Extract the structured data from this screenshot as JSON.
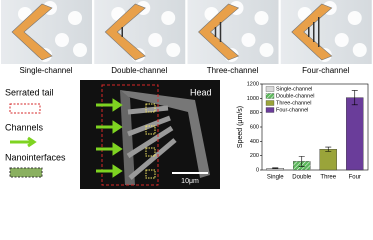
{
  "panels": [
    "Single-channel",
    "Double-channel",
    "Three-channel",
    "Four-channel"
  ],
  "legend": [
    "Serrated tail",
    "Channels",
    "Nanointerfaces"
  ],
  "micrograph": {
    "head": "Head",
    "scale": "10μm"
  },
  "chart_data": {
    "type": "bar",
    "ylabel": "Speed (μm/s)",
    "categories": [
      "Single",
      "Double",
      "Three",
      "Four"
    ],
    "values": [
      25,
      120,
      290,
      1010
    ],
    "errors": [
      5,
      70,
      30,
      100
    ],
    "colors": [
      "#d9d9d9",
      "#5cb85c",
      "#9aa43a",
      "#6a3d9a"
    ],
    "legend_labels": [
      "Single-channel",
      "Double-channel",
      "Three-channel",
      "Four-channel"
    ],
    "ylim": [
      0,
      1200
    ],
    "yticks": [
      0,
      200,
      400,
      600,
      800,
      1000,
      1200
    ],
    "legend_position": "upper left"
  }
}
